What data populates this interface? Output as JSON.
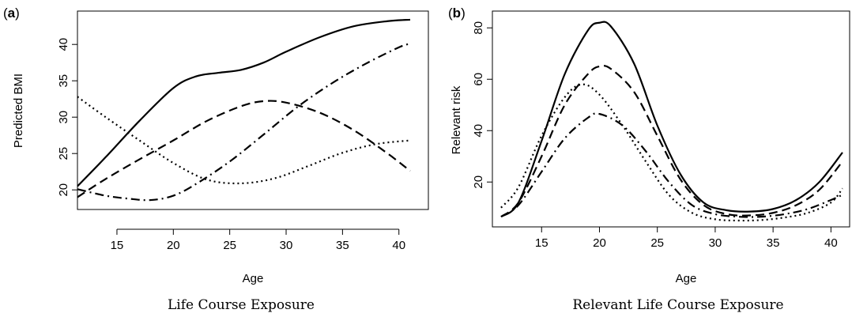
{
  "chart_data": [
    {
      "panel": "a",
      "type": "line",
      "caption": "Life Course Exposure",
      "xlabel": "Age",
      "ylabel": "Predicted BMI",
      "xlim": [
        11.5,
        41
      ],
      "ylim": [
        18.5,
        43.5
      ],
      "x_ticks": [
        15,
        20,
        25,
        30,
        35,
        40
      ],
      "y_ticks": [
        20,
        25,
        30,
        35,
        40
      ],
      "grid": false,
      "series": [
        {
          "style": "solid",
          "x": [
            11.5,
            14,
            17,
            20,
            22,
            24,
            26,
            28,
            30,
            33,
            36,
            39,
            41
          ],
          "y": [
            20.5,
            24.5,
            29.5,
            34,
            35.6,
            36.1,
            36.5,
            37.5,
            39,
            41,
            42.5,
            43.2,
            43.4
          ]
        },
        {
          "style": "dashed",
          "x": [
            11.5,
            14,
            17,
            20,
            23,
            26,
            28,
            30,
            33,
            36,
            39,
            41
          ],
          "y": [
            19,
            21.5,
            24.2,
            26.8,
            29.5,
            31.5,
            32.2,
            32,
            30.6,
            28.2,
            25,
            22.6
          ]
        },
        {
          "style": "dotted",
          "x": [
            11.5,
            14,
            17,
            20,
            23,
            26,
            29,
            32,
            35,
            38,
            41
          ],
          "y": [
            32.8,
            30,
            26.8,
            23.7,
            21.4,
            20.9,
            21.6,
            23.3,
            25.1,
            26.3,
            26.8
          ]
        },
        {
          "style": "dashdot",
          "x": [
            11.5,
            14,
            16,
            18,
            20,
            22,
            25,
            28,
            31,
            34,
            37,
            40,
            41
          ],
          "y": [
            20.1,
            19.2,
            18.8,
            18.6,
            19.2,
            20.8,
            23.9,
            27.6,
            31.4,
            34.6,
            37.3,
            39.6,
            40.1
          ]
        }
      ]
    },
    {
      "panel": "b",
      "type": "line",
      "caption": "Relevant Life Course Exposure",
      "xlabel": "Age",
      "ylabel": "Relevant risk",
      "xlim": [
        11.5,
        41
      ],
      "ylim": [
        5,
        85
      ],
      "x_ticks": [
        15,
        20,
        25,
        30,
        35,
        40
      ],
      "y_ticks": [
        20,
        40,
        60,
        80
      ],
      "grid": false,
      "series": [
        {
          "style": "solid",
          "x": [
            11.5,
            13,
            15,
            17,
            19,
            20,
            21,
            23,
            25,
            27,
            29,
            31,
            33,
            35,
            37,
            39,
            41
          ],
          "y": [
            6.5,
            12,
            36,
            62,
            79,
            82,
            80.5,
            66,
            42,
            23,
            12,
            9,
            8.5,
            9.5,
            13,
            20,
            31.5
          ]
        },
        {
          "style": "dashed",
          "x": [
            11.5,
            13,
            15,
            17,
            19,
            20,
            21,
            23,
            25,
            27,
            29,
            31,
            33,
            35,
            37,
            39,
            41
          ],
          "y": [
            6.5,
            12,
            30,
            50,
            62,
            65,
            64,
            55,
            38,
            21,
            11,
            7.5,
            7,
            8,
            11,
            17,
            28
          ]
        },
        {
          "style": "dotted",
          "x": [
            11.5,
            13,
            15,
            17,
            18.5,
            20,
            22,
            24,
            26,
            28,
            30,
            32,
            34,
            36,
            38,
            40,
            41
          ],
          "y": [
            10,
            18,
            38,
            53,
            58,
            54,
            42,
            28,
            15,
            8,
            5.5,
            5,
            5.2,
            6.2,
            8,
            12,
            17.5
          ]
        },
        {
          "style": "dashdot",
          "x": [
            11.5,
            13,
            15,
            17,
            19,
            20,
            22,
            24,
            26,
            28,
            30,
            32,
            34,
            36,
            38,
            40,
            41
          ],
          "y": [
            6.5,
            11,
            24,
            37,
            45,
            46.5,
            42,
            32,
            20,
            11,
            7.5,
            6.5,
            6.5,
            7.5,
            9.5,
            13,
            15
          ]
        }
      ]
    }
  ]
}
